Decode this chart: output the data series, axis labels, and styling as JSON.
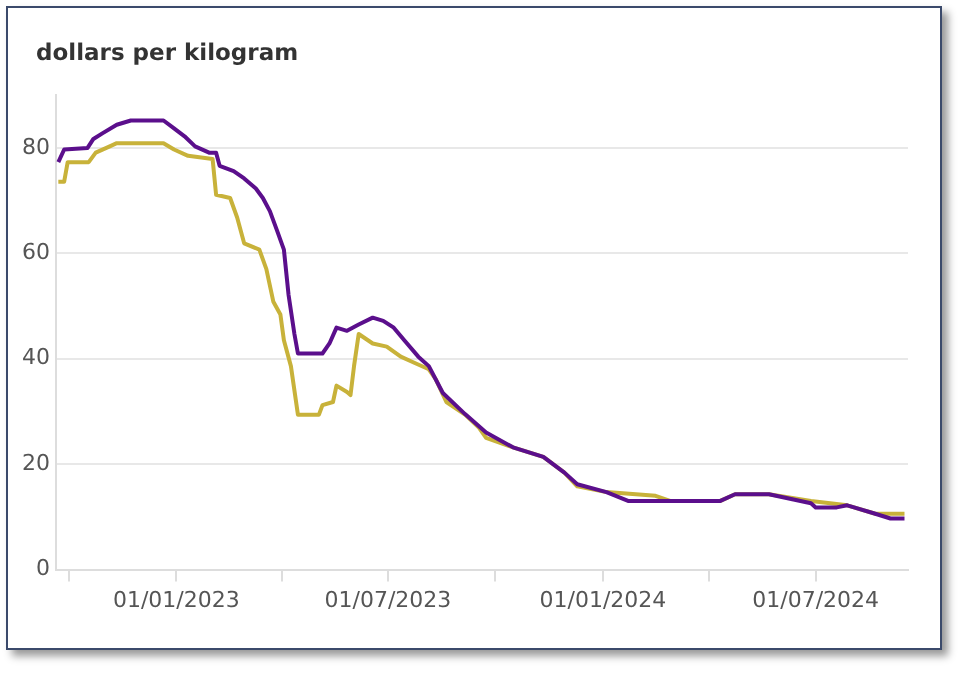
{
  "chart_data": {
    "type": "line",
    "ylabel": "dollars per kilogram",
    "xlim": [
      "2022-09-20",
      "2024-09-18"
    ],
    "ylim": [
      0,
      90
    ],
    "xticks": [
      {
        "value": "2022-10-01",
        "label": null
      },
      {
        "value": "2023-01-01",
        "label": "01/01/2023"
      },
      {
        "value": "2023-04-01",
        "label": null
      },
      {
        "value": "2023-07-01",
        "label": "01/07/2023"
      },
      {
        "value": "2023-10-01",
        "label": null
      },
      {
        "value": "2024-01-01",
        "label": "01/01/2024"
      },
      {
        "value": "2024-04-01",
        "label": null
      },
      {
        "value": "2024-07-01",
        "label": "01/07/2024"
      }
    ],
    "yticks": [
      0,
      20,
      40,
      60,
      80
    ],
    "grid": "y",
    "legend": false,
    "marker": "none",
    "line_style": "solid",
    "series": [
      {
        "color": "#5b0f8c",
        "x": [
          "2022-09-22",
          "2022-09-27",
          "2022-10-17",
          "2022-10-22",
          "2022-10-30",
          "2022-11-11",
          "2022-11-23",
          "2022-12-21",
          "2022-12-30",
          "2023-01-08",
          "2023-01-17",
          "2023-01-29",
          "2023-02-04",
          "2023-02-07",
          "2023-02-19",
          "2023-02-28",
          "2023-03-10",
          "2023-03-16",
          "2023-03-22",
          "2023-03-28",
          "2023-04-03",
          "2023-04-07",
          "2023-04-12",
          "2023-04-15",
          "2023-05-06",
          "2023-05-12",
          "2023-05-18",
          "2023-05-27",
          "2023-06-06",
          "2023-06-18",
          "2023-06-27",
          "2023-07-06",
          "2023-07-15",
          "2023-07-27",
          "2023-08-05",
          "2023-08-17",
          "2023-09-05",
          "2023-09-23",
          "2023-10-16",
          "2023-11-11",
          "2023-11-29",
          "2023-12-10",
          "2024-01-04",
          "2024-01-23",
          "2024-02-15",
          "2024-02-28",
          "2024-04-10",
          "2024-04-23",
          "2024-05-22",
          "2024-06-27",
          "2024-07-01",
          "2024-07-19",
          "2024-07-28",
          "2024-08-21",
          "2024-09-03",
          "2024-09-15"
        ],
        "values": [
          77.3,
          79.7,
          80,
          81.7,
          82.8,
          84.4,
          85.2,
          85.2,
          83.7,
          82.2,
          80.3,
          79.1,
          79.1,
          76.6,
          75.6,
          74.2,
          72.3,
          70.5,
          68,
          64.4,
          60.7,
          52.1,
          44.7,
          41,
          41,
          42.9,
          45.9,
          45.3,
          46.5,
          47.8,
          47.2,
          45.9,
          43.5,
          40.4,
          38.6,
          33.5,
          29.5,
          26,
          23.2,
          21.4,
          18.4,
          16.2,
          14.7,
          13,
          13,
          13,
          13,
          14.3,
          14.3,
          12.6,
          11.8,
          11.8,
          12.2,
          10.6,
          9.7,
          9.7
        ]
      },
      {
        "color": "#c8b23a",
        "x": [
          "2022-09-22",
          "2022-09-27",
          "2022-09-30",
          "2022-10-18",
          "2022-10-24",
          "2022-11-05",
          "2022-11-11",
          "2022-12-21",
          "2022-12-30",
          "2023-01-11",
          "2023-02-01",
          "2023-02-04",
          "2023-02-16",
          "2023-02-22",
          "2023-02-28",
          "2023-03-13",
          "2023-03-19",
          "2023-03-25",
          "2023-03-31",
          "2023-04-03",
          "2023-04-09",
          "2023-04-15",
          "2023-05-03",
          "2023-05-06",
          "2023-05-15",
          "2023-05-18",
          "2023-05-27",
          "2023-05-30",
          "2023-06-02",
          "2023-06-06",
          "2023-06-18",
          "2023-06-30",
          "2023-07-12",
          "2023-07-24",
          "2023-08-05",
          "2023-08-11",
          "2023-08-20",
          "2023-09-05",
          "2023-09-17",
          "2023-09-23",
          "2023-10-16",
          "2023-11-11",
          "2023-11-29",
          "2023-12-10",
          "2024-01-04",
          "2024-02-15",
          "2024-02-28",
          "2024-04-10",
          "2024-04-23",
          "2024-05-22",
          "2024-06-27",
          "2024-07-28",
          "2024-08-21",
          "2024-09-15"
        ],
        "values": [
          73.6,
          73.6,
          77.3,
          77.3,
          79.1,
          80.3,
          80.9,
          80.9,
          79.7,
          78.5,
          77.9,
          71.1,
          70.5,
          66.8,
          61.9,
          60.7,
          57,
          50.8,
          48.4,
          43.5,
          38.6,
          29.4,
          29.4,
          31.2,
          31.8,
          34.9,
          33.7,
          33.1,
          38.6,
          44.7,
          42.9,
          42.3,
          40.4,
          39.2,
          38,
          36.1,
          31.8,
          29.4,
          26.9,
          25,
          23.2,
          21.4,
          18.4,
          15.8,
          14.7,
          14,
          13,
          13,
          14.3,
          14.3,
          13,
          12.2,
          10.6,
          10.6
        ]
      }
    ]
  }
}
